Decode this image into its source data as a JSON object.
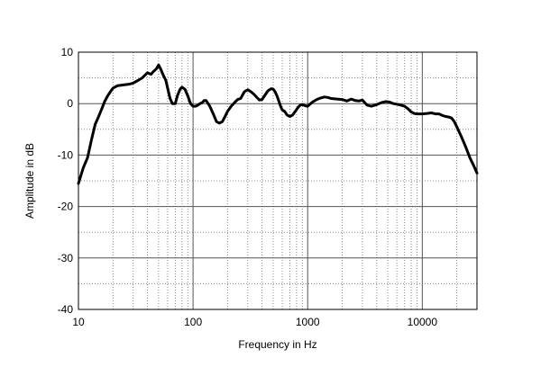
{
  "chart_data": {
    "type": "line",
    "title": "",
    "xlabel": "Frequency in Hz",
    "ylabel": "Amplitude in dB",
    "x_scale": "log",
    "xlim": [
      10,
      30000
    ],
    "ylim": [
      -40,
      10
    ],
    "x_ticks": [
      10,
      100,
      1000,
      10000
    ],
    "x_tick_labels": [
      "10",
      "100",
      "1000",
      "10000"
    ],
    "y_ticks": [
      10,
      0,
      -10,
      -20,
      -30,
      -40
    ],
    "y_tick_labels": [
      "10",
      "0",
      "-10",
      "-20",
      "-30",
      "-40"
    ],
    "grid": true,
    "legend": "none",
    "colors": {
      "line": "#000000",
      "grid_major": "#555555",
      "grid_minor": "#888888",
      "frame": "#000000"
    },
    "series": [
      {
        "x": [
          10,
          11,
          12,
          13,
          14,
          15,
          16,
          17,
          18,
          19,
          20,
          22,
          24,
          26,
          28,
          30,
          33,
          36,
          40,
          43,
          45,
          48,
          50,
          52,
          55,
          58,
          60,
          63,
          66,
          70,
          73,
          77,
          80,
          85,
          90,
          95,
          100,
          105,
          110,
          115,
          120,
          125,
          130,
          140,
          150,
          160,
          170,
          180,
          190,
          200,
          215,
          230,
          245,
          260,
          280,
          300,
          320,
          340,
          360,
          380,
          400,
          420,
          450,
          480,
          500,
          520,
          540,
          560,
          580,
          600,
          630,
          660,
          700,
          740,
          780,
          820,
          860,
          900,
          950,
          1000,
          1100,
          1200,
          1300,
          1400,
          1500,
          1600,
          1800,
          2000,
          2200,
          2400,
          2600,
          2800,
          3000,
          3300,
          3600,
          4000,
          4400,
          4800,
          5200,
          5600,
          6000,
          6500,
          7000,
          7500,
          8000,
          8500,
          9000,
          10000,
          11000,
          12000,
          13000,
          14000,
          15000,
          16000,
          17000,
          18000,
          19000,
          20000,
          22000,
          24000,
          26000,
          28000,
          30000
        ],
        "y": [
          -15.5,
          -12.5,
          -10.5,
          -7,
          -4,
          -2.5,
          -1,
          0.5,
          1.5,
          2.3,
          3,
          3.5,
          3.6,
          3.7,
          3.8,
          4,
          4.5,
          5,
          6,
          5.7,
          6.2,
          6.8,
          7.5,
          6.8,
          5.5,
          4.5,
          3,
          1,
          0,
          0,
          1.5,
          2.8,
          3.2,
          2.8,
          1.5,
          0,
          -0.5,
          -0.5,
          -0.3,
          0,
          0.2,
          0.6,
          0.6,
          -0.5,
          -2,
          -3.5,
          -3.8,
          -3.5,
          -2.5,
          -1.5,
          -0.5,
          0.2,
          0.8,
          1,
          2.3,
          2.7,
          2.3,
          1.8,
          1.2,
          0.7,
          0.8,
          1.5,
          2.5,
          2.9,
          2.8,
          2.3,
          1.5,
          0.5,
          -0.5,
          -1.2,
          -1.5,
          -2.2,
          -2.5,
          -2.2,
          -1.5,
          -0.8,
          -0.3,
          -0.2,
          -0.4,
          -0.5,
          0.3,
          0.8,
          1.1,
          1.3,
          1.2,
          1,
          0.9,
          0.8,
          0.5,
          0.9,
          0.6,
          0.5,
          0.7,
          -0.3,
          -0.5,
          -0.2,
          0.2,
          0.4,
          0.3,
          0,
          -0.1,
          -0.3,
          -0.5,
          -1,
          -1.6,
          -1.9,
          -2,
          -2,
          -1.9,
          -1.8,
          -2,
          -2,
          -2.3,
          -2.5,
          -2.6,
          -2.8,
          -3.5,
          -4.5,
          -6.5,
          -8.5,
          -10.5,
          -12,
          -13.5
        ]
      }
    ]
  }
}
